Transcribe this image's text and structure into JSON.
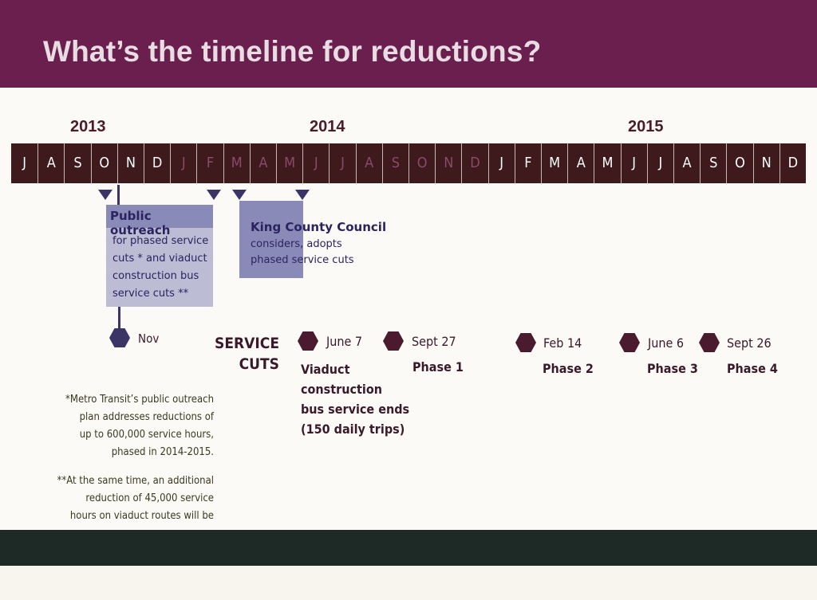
{
  "title": "What’s the timeline for reductions?",
  "years": [
    "2013",
    "2014",
    "2015"
  ],
  "months": [
    {
      "label": "J",
      "dim": false
    },
    {
      "label": "A",
      "dim": false
    },
    {
      "label": "S",
      "dim": false
    },
    {
      "label": "O",
      "dim": false
    },
    {
      "label": "N",
      "dim": false
    },
    {
      "label": "D",
      "dim": false
    },
    {
      "label": "J",
      "dim": true
    },
    {
      "label": "F",
      "dim": true
    },
    {
      "label": "M",
      "dim": true
    },
    {
      "label": "A",
      "dim": true
    },
    {
      "label": "M",
      "dim": true
    },
    {
      "label": "J",
      "dim": true
    },
    {
      "label": "J",
      "dim": true
    },
    {
      "label": "A",
      "dim": true
    },
    {
      "label": "S",
      "dim": true
    },
    {
      "label": "O",
      "dim": true
    },
    {
      "label": "N",
      "dim": true
    },
    {
      "label": "D",
      "dim": true
    },
    {
      "label": "J",
      "dim": false
    },
    {
      "label": "F",
      "dim": false
    },
    {
      "label": "M",
      "dim": false
    },
    {
      "label": "A",
      "dim": false
    },
    {
      "label": "M",
      "dim": false
    },
    {
      "label": "J",
      "dim": false
    },
    {
      "label": "J",
      "dim": false
    },
    {
      "label": "A",
      "dim": false
    },
    {
      "label": "S",
      "dim": false
    },
    {
      "label": "O",
      "dim": false
    },
    {
      "label": "N",
      "dim": false
    },
    {
      "label": "D",
      "dim": false
    }
  ],
  "outreach": {
    "heading": "Public outreach",
    "lines": [
      "for phased service",
      "cuts * and viaduct",
      "construction bus",
      "service cuts **"
    ]
  },
  "council": {
    "lines": [
      "King County Council",
      "considers, adopts",
      "phased service cuts"
    ]
  },
  "nov_label": "Nov",
  "service_cuts_label": [
    "SERVICE",
    "CUTS"
  ],
  "events": [
    {
      "date": "June 7",
      "lines": [
        "Viaduct",
        "construction",
        "bus service ends",
        "(150 daily trips)"
      ]
    },
    {
      "date": "Sept 27",
      "lines": [
        "Phase 1"
      ]
    },
    {
      "date": "Feb 14",
      "lines": [
        "Phase 2"
      ]
    },
    {
      "date": "June 6",
      "lines": [
        "Phase 3"
      ]
    },
    {
      "date": "Sept 26",
      "lines": [
        "Phase 4"
      ]
    }
  ],
  "notes": {
    "note1": [
      "*Metro Transit’s public outreach",
      "plan addresses reductions of",
      "up to 600,000 service hours,",
      "phased in 2014-2015."
    ],
    "note2": [
      "**At the same time, an additional",
      "reduction of 45,000 service",
      "hours on viaduct routes will be"
    ]
  },
  "colors": {
    "title_bar": "#6b1f4e",
    "month_bar": "#3e1a1d",
    "accent_navy": "#3b3466",
    "box_light": "#bcbcd4",
    "box_dark": "#8a8ab8",
    "marker": "#4a1a2e"
  }
}
